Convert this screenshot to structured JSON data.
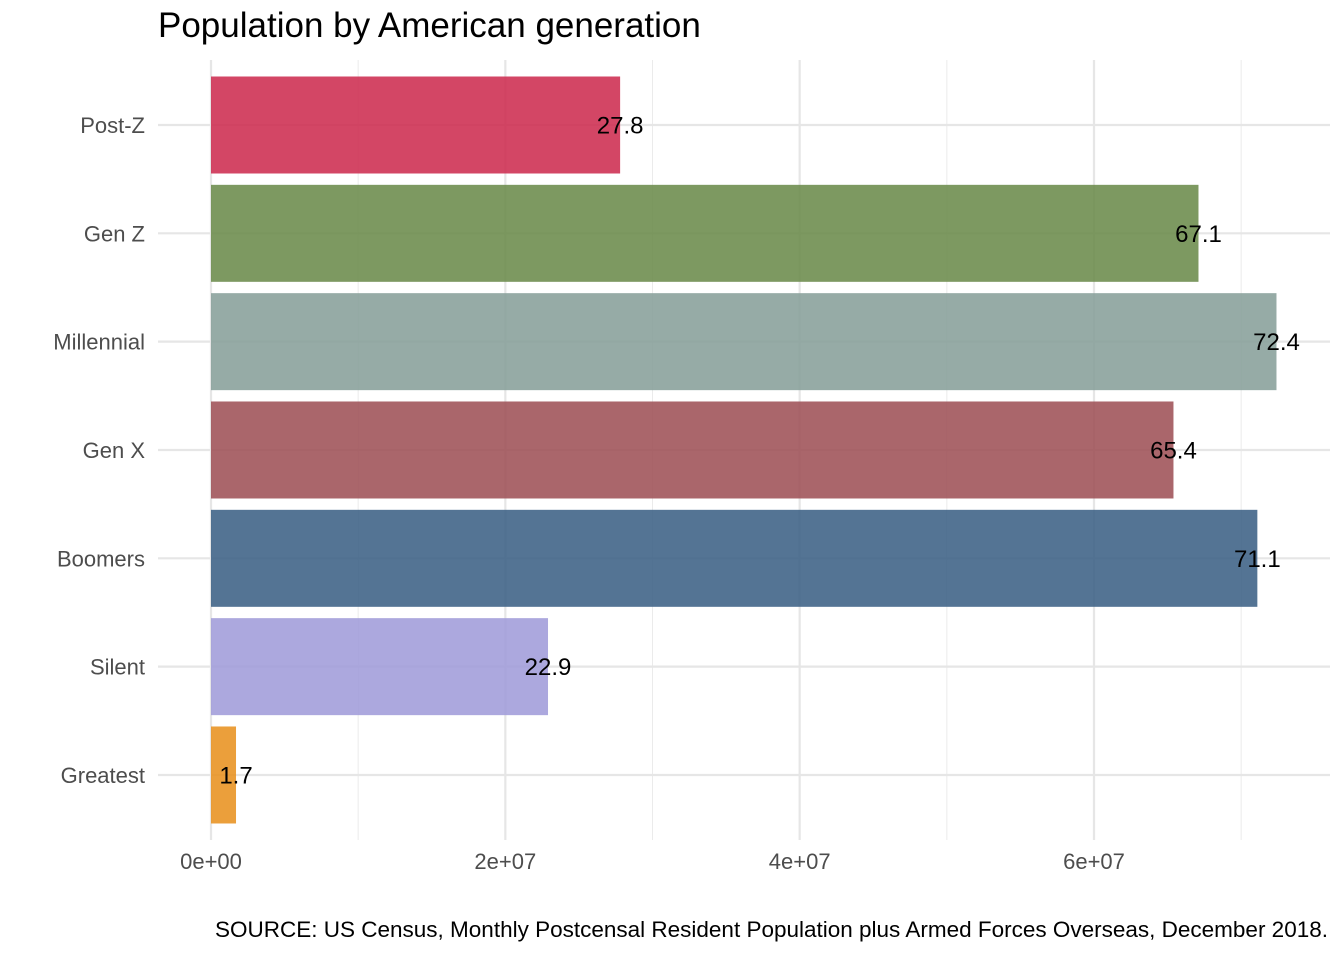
{
  "chart_data": {
    "type": "bar",
    "orientation": "horizontal",
    "title": "Population by American generation",
    "caption": "SOURCE: US Census, Monthly Postcensal Resident Population plus Armed Forces Overseas, December 2018.",
    "xlabel": "",
    "ylabel": "",
    "xlim": [
      0,
      72400000
    ],
    "x_ticks": [
      {
        "value": 0,
        "label": "0e+00"
      },
      {
        "value": 20000000,
        "label": "2e+07"
      },
      {
        "value": 40000000,
        "label": "4e+07"
      },
      {
        "value": 60000000,
        "label": "6e+07"
      }
    ],
    "grid": true,
    "legend": "none",
    "categories": [
      "Post-Z",
      "Gen Z",
      "Millennial",
      "Gen X",
      "Boomers",
      "Silent",
      "Greatest"
    ],
    "values": [
      27800000,
      67100000,
      72400000,
      65400000,
      71100000,
      22900000,
      1700000
    ],
    "data_labels": [
      "27.8",
      "67.1",
      "72.4",
      "65.4",
      "71.1",
      "22.9",
      "1.7"
    ],
    "colors": [
      "#cd2a4e",
      "#6a8a4a",
      "#869f99",
      "#9d4f55",
      "#3b5f84",
      "#a09bd9",
      "#e8911e"
    ]
  }
}
